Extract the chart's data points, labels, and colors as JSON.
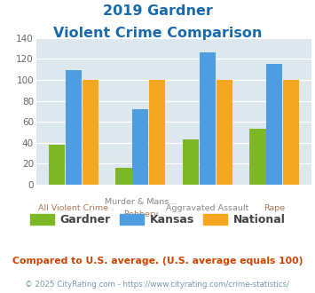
{
  "title_line1": "2019 Gardner",
  "title_line2": "Violent Crime Comparison",
  "top_labels": [
    "",
    "Murder & Mans...",
    "Aggravated Assault",
    ""
  ],
  "bottom_labels": [
    "All Violent Crime",
    "Robbery",
    "",
    "Rape"
  ],
  "gardner": [
    38,
    16,
    43,
    53
  ],
  "kansas": [
    109,
    72,
    126,
    115
  ],
  "national": [
    100,
    100,
    100,
    100
  ],
  "gardner_color": "#7db725",
  "kansas_color": "#4d9de0",
  "national_color": "#f5a623",
  "ylim": [
    0,
    140
  ],
  "yticks": [
    0,
    20,
    40,
    60,
    80,
    100,
    120,
    140
  ],
  "bg_color": "#dce8ed",
  "title_color": "#1a6aab",
  "note_text": "Compared to U.S. average. (U.S. average equals 100)",
  "note_color": "#cc4400",
  "footer_text": "© 2025 CityRating.com - https://www.cityrating.com/crime-statistics/",
  "footer_color": "#7799aa",
  "legend_labels": [
    "Gardner",
    "Kansas",
    "National"
  ],
  "legend_text_color": "#444444"
}
